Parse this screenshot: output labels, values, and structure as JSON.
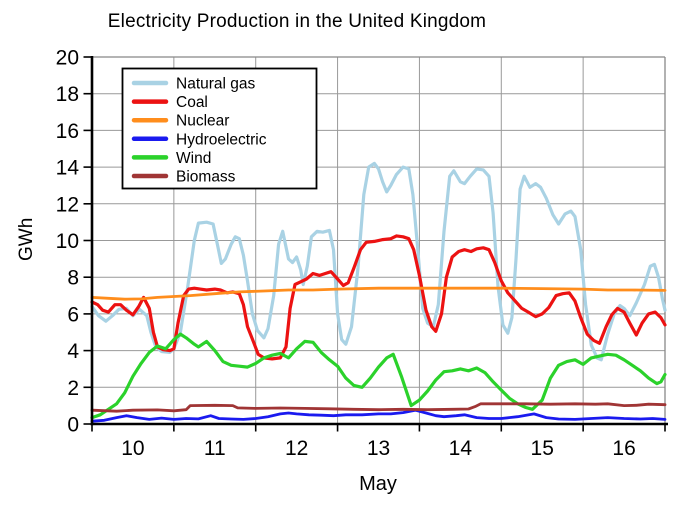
{
  "page": {
    "background": "#ffffff"
  },
  "chart_data": {
    "type": "line",
    "title": "Electricity Production in the United Kingdom",
    "xlabel": "May",
    "ylabel": "GWh",
    "x_range": [
      10,
      17
    ],
    "y_range": [
      0,
      20
    ],
    "grid": true,
    "legend_position": "upper-left",
    "grid_color": "#999999",
    "frame_color": "#888888",
    "axis_color": "#000000",
    "y_ticks": [
      0,
      2,
      4,
      6,
      8,
      10,
      12,
      14,
      16,
      18,
      20
    ],
    "x_grid_days": [
      10,
      11,
      12,
      13,
      14,
      15,
      16,
      17
    ],
    "x_tick_labels": [
      {
        "label": "10",
        "pos": 10.5
      },
      {
        "label": "11",
        "pos": 11.5
      },
      {
        "label": "12",
        "pos": 12.5
      },
      {
        "label": "13",
        "pos": 13.5
      },
      {
        "label": "14",
        "pos": 14.5
      },
      {
        "label": "15",
        "pos": 15.5
      },
      {
        "label": "16",
        "pos": 16.5
      }
    ],
    "series": [
      {
        "name": "Natural gas",
        "color": "#A9D2E4",
        "width": 3.2,
        "x": [
          10,
          10.08,
          10.17,
          10.25,
          10.33,
          10.42,
          10.5,
          10.58,
          10.67,
          10.72,
          10.78,
          10.85,
          10.95,
          11,
          11.08,
          11.17,
          11.25,
          11.3,
          11.4,
          11.48,
          11.54,
          11.58,
          11.63,
          11.7,
          11.75,
          11.8,
          11.85,
          11.9,
          11.96,
          12.02,
          12.1,
          12.15,
          12.22,
          12.28,
          12.33,
          12.4,
          12.45,
          12.5,
          12.55,
          12.58,
          12.63,
          12.68,
          12.75,
          12.82,
          12.9,
          12.95,
          13,
          13.05,
          13.1,
          13.17,
          13.25,
          13.32,
          13.38,
          13.45,
          13.5,
          13.55,
          13.6,
          13.65,
          13.72,
          13.8,
          13.87,
          13.92,
          13.98,
          14.04,
          14.1,
          14.17,
          14.23,
          14.3,
          14.37,
          14.42,
          14.5,
          14.55,
          14.62,
          14.7,
          14.78,
          14.85,
          14.9,
          14.96,
          15.02,
          15.08,
          15.13,
          15.18,
          15.23,
          15.28,
          15.35,
          15.42,
          15.48,
          15.55,
          15.63,
          15.7,
          15.78,
          15.85,
          15.9,
          15.97,
          16.03,
          16.1,
          16.17,
          16.22,
          16.3,
          16.38,
          16.45,
          16.5,
          16.57,
          16.65,
          16.75,
          16.82,
          16.87,
          16.92,
          16.97,
          17
        ],
        "y": [
          6.4,
          5.9,
          5.6,
          5.9,
          6.25,
          6.3,
          5.9,
          6.25,
          5.9,
          5,
          4.2,
          3.95,
          3.9,
          4.1,
          5,
          7.5,
          10,
          10.95,
          11,
          10.9,
          9.6,
          8.75,
          9,
          9.8,
          10.2,
          10.1,
          9.2,
          7.8,
          6,
          5.1,
          4.7,
          5.2,
          7,
          9.8,
          10.5,
          9,
          8.8,
          9.1,
          8.4,
          7.6,
          8.6,
          10.2,
          10.5,
          10.45,
          10.55,
          9.5,
          6,
          4.6,
          4.35,
          5.3,
          8.5,
          12.5,
          14,
          14.2,
          13.9,
          13.2,
          12.65,
          13,
          13.6,
          14,
          13.9,
          12.5,
          9.5,
          6.3,
          5.5,
          5.3,
          6.5,
          10.5,
          13.5,
          13.8,
          13.2,
          13.1,
          13.5,
          13.9,
          13.85,
          13.5,
          11.5,
          7.5,
          5.4,
          4.95,
          5.8,
          9,
          12.8,
          13.5,
          12.9,
          13.1,
          12.9,
          12.3,
          11.4,
          10.9,
          11.45,
          11.6,
          11.3,
          9.5,
          6.5,
          4.3,
          3.6,
          3.5,
          4.9,
          6,
          6.45,
          6.3,
          5.9,
          6.6,
          7.6,
          8.6,
          8.7,
          8,
          6.8,
          6.2
        ]
      },
      {
        "name": "Coal",
        "color": "#EC1212",
        "width": 3.2,
        "x": [
          10,
          10.07,
          10.13,
          10.2,
          10.28,
          10.35,
          10.42,
          10.5,
          10.57,
          10.63,
          10.7,
          10.75,
          10.8,
          10.87,
          10.95,
          11,
          11.05,
          11.12,
          11.18,
          11.25,
          11.32,
          11.4,
          11.5,
          11.57,
          11.65,
          11.72,
          11.8,
          11.85,
          11.9,
          11.97,
          12.03,
          12.1,
          12.2,
          12.3,
          12.37,
          12.42,
          12.48,
          12.55,
          12.62,
          12.7,
          12.78,
          12.85,
          12.92,
          13,
          13.07,
          13.13,
          13.2,
          13.28,
          13.35,
          13.45,
          13.55,
          13.65,
          13.72,
          13.8,
          13.87,
          13.93,
          14,
          14.08,
          14.15,
          14.2,
          14.27,
          14.33,
          14.4,
          14.48,
          14.55,
          14.63,
          14.7,
          14.78,
          14.85,
          14.92,
          15,
          15.08,
          15.17,
          15.25,
          15.33,
          15.42,
          15.5,
          15.58,
          15.67,
          15.75,
          15.83,
          15.9,
          15.97,
          16.05,
          16.13,
          16.2,
          16.28,
          16.35,
          16.42,
          16.5,
          16.57,
          16.65,
          16.72,
          16.8,
          16.88,
          16.95,
          17
        ],
        "y": [
          6.65,
          6.5,
          6.2,
          6.1,
          6.5,
          6.5,
          6.2,
          5.95,
          6.4,
          6.9,
          6.3,
          5,
          4.2,
          4.05,
          4,
          4.1,
          5.5,
          7,
          7.35,
          7.4,
          7.35,
          7.3,
          7.35,
          7.3,
          7.15,
          7.2,
          7.1,
          6.5,
          5.3,
          4.5,
          3.8,
          3.6,
          3.55,
          3.6,
          4.2,
          6.3,
          7.6,
          7.75,
          7.9,
          8.2,
          8.1,
          8.2,
          8.3,
          7.9,
          7.55,
          7.7,
          8.5,
          9.5,
          9.9,
          9.95,
          10.05,
          10.1,
          10.25,
          10.2,
          10.1,
          9.5,
          8.1,
          6.2,
          5.3,
          5.05,
          6,
          8,
          9.1,
          9.4,
          9.5,
          9.4,
          9.55,
          9.6,
          9.5,
          8.8,
          7.8,
          7.15,
          6.7,
          6.3,
          6.1,
          5.85,
          6,
          6.35,
          7,
          7.1,
          7.15,
          6.7,
          5.8,
          4.9,
          4.55,
          4.4,
          5.3,
          5.95,
          6.3,
          6.1,
          5.5,
          4.85,
          5.5,
          6,
          6.1,
          5.8,
          5.4
        ]
      },
      {
        "name": "Nuclear",
        "color": "#FF8D1C",
        "width": 2.8,
        "x": [
          10,
          10.2,
          10.4,
          10.6,
          10.8,
          11,
          11.2,
          11.5,
          11.8,
          12.1,
          12.4,
          12.7,
          13,
          13.5,
          14,
          14.5,
          15,
          15.5,
          16,
          16.3,
          16.6,
          17
        ],
        "y": [
          6.9,
          6.85,
          6.8,
          6.82,
          6.9,
          6.95,
          7,
          7.1,
          7.2,
          7.25,
          7.3,
          7.3,
          7.35,
          7.4,
          7.4,
          7.4,
          7.4,
          7.38,
          7.35,
          7.3,
          7.3,
          7.28
        ]
      },
      {
        "name": "Hydroelectric",
        "color": "#1A1AEF",
        "width": 2.8,
        "x": [
          10,
          10.15,
          10.3,
          10.42,
          10.55,
          10.7,
          10.85,
          11,
          11.15,
          11.3,
          11.45,
          11.55,
          11.7,
          11.85,
          12,
          12.15,
          12.3,
          12.4,
          12.5,
          12.65,
          12.8,
          12.95,
          13.1,
          13.3,
          13.5,
          13.65,
          13.8,
          13.95,
          14.08,
          14.2,
          14.3,
          14.45,
          14.55,
          14.7,
          14.85,
          15,
          15.2,
          15.4,
          15.55,
          15.7,
          15.9,
          16.1,
          16.3,
          16.5,
          16.7,
          16.85,
          17
        ],
        "y": [
          0.15,
          0.2,
          0.35,
          0.45,
          0.35,
          0.25,
          0.32,
          0.25,
          0.3,
          0.28,
          0.45,
          0.3,
          0.27,
          0.25,
          0.3,
          0.4,
          0.55,
          0.6,
          0.55,
          0.5,
          0.48,
          0.45,
          0.5,
          0.5,
          0.55,
          0.55,
          0.62,
          0.75,
          0.6,
          0.45,
          0.4,
          0.45,
          0.5,
          0.35,
          0.3,
          0.3,
          0.4,
          0.55,
          0.35,
          0.27,
          0.25,
          0.3,
          0.35,
          0.3,
          0.27,
          0.3,
          0.25
        ]
      },
      {
        "name": "Wind",
        "color": "#2BD22B",
        "width": 3.2,
        "x": [
          10,
          10.1,
          10.2,
          10.3,
          10.4,
          10.5,
          10.6,
          10.7,
          10.8,
          10.9,
          11,
          11.08,
          11.15,
          11.25,
          11.3,
          11.4,
          11.5,
          11.6,
          11.7,
          11.8,
          11.9,
          12,
          12.1,
          12.2,
          12.3,
          12.4,
          12.5,
          12.6,
          12.7,
          12.8,
          12.9,
          13,
          13.1,
          13.2,
          13.3,
          13.4,
          13.5,
          13.6,
          13.68,
          13.78,
          13.9,
          14,
          14.1,
          14.2,
          14.3,
          14.4,
          14.5,
          14.6,
          14.7,
          14.8,
          14.9,
          15,
          15.1,
          15.2,
          15.3,
          15.38,
          15.5,
          15.6,
          15.7,
          15.8,
          15.9,
          16,
          16.1,
          16.2,
          16.3,
          16.4,
          16.5,
          16.6,
          16.7,
          16.8,
          16.9,
          16.95,
          17
        ],
        "y": [
          0.35,
          0.5,
          0.8,
          1.1,
          1.7,
          2.6,
          3.3,
          3.9,
          4.25,
          4.1,
          4.6,
          4.9,
          4.7,
          4.35,
          4.2,
          4.5,
          4,
          3.4,
          3.2,
          3.15,
          3.1,
          3.3,
          3.6,
          3.75,
          3.85,
          3.6,
          4.1,
          4.5,
          4.45,
          3.9,
          3.5,
          3.15,
          2.5,
          2.1,
          2,
          2.5,
          3.1,
          3.6,
          3.8,
          2.6,
          1,
          1.3,
          1.8,
          2.4,
          2.85,
          2.9,
          3,
          2.9,
          3.05,
          2.8,
          2.3,
          1.85,
          1.4,
          1.1,
          0.9,
          0.8,
          1.3,
          2.5,
          3.2,
          3.4,
          3.5,
          3.25,
          3.6,
          3.7,
          3.8,
          3.75,
          3.5,
          3.2,
          2.9,
          2.5,
          2.2,
          2.3,
          2.7
        ]
      },
      {
        "name": "Biomass",
        "color": "#A03535",
        "width": 2.8,
        "x": [
          10,
          10.3,
          10.5,
          10.8,
          11,
          11.15,
          11.2,
          11.5,
          11.72,
          11.78,
          12,
          12.3,
          12.6,
          12.9,
          13.2,
          13.5,
          13.8,
          14.1,
          14.4,
          14.6,
          14.68,
          14.75,
          15,
          15.3,
          15.6,
          15.9,
          16.15,
          16.3,
          16.5,
          16.65,
          16.8,
          17
        ],
        "y": [
          0.75,
          0.7,
          0.75,
          0.77,
          0.72,
          0.78,
          1,
          1.02,
          1,
          0.88,
          0.85,
          0.87,
          0.85,
          0.83,
          0.8,
          0.78,
          0.8,
          0.78,
          0.8,
          0.82,
          0.95,
          1.1,
          1.1,
          1.1,
          1.08,
          1.1,
          1.08,
          1.1,
          1,
          1.02,
          1.08,
          1.05
        ]
      }
    ]
  }
}
